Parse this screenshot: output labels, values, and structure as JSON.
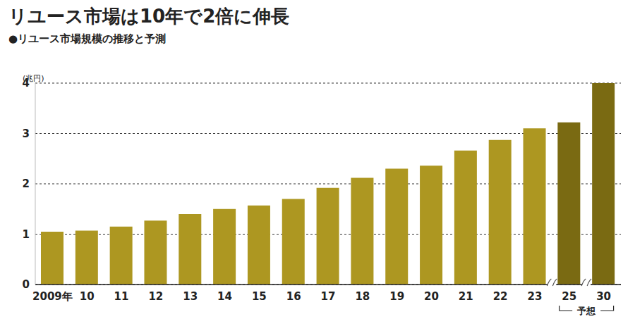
{
  "chart_data": {
    "type": "bar",
    "title": "リユース市場は10年で2倍に伸長",
    "subtitle": "●リユース市場規模の推移と予測",
    "ylabel": "(兆円)",
    "categories": [
      "2009年",
      "10",
      "11",
      "12",
      "13",
      "14",
      "15",
      "16",
      "17",
      "18",
      "19",
      "20",
      "21",
      "22",
      "23",
      "25",
      "30"
    ],
    "values": [
      1.05,
      1.07,
      1.15,
      1.27,
      1.4,
      1.5,
      1.57,
      1.7,
      1.92,
      2.12,
      2.3,
      2.36,
      2.66,
      2.87,
      3.1,
      3.22,
      4.0
    ],
    "colors": [
      "#ad9721",
      "#ad9721",
      "#ad9721",
      "#ad9721",
      "#ad9721",
      "#ad9721",
      "#ad9721",
      "#ad9721",
      "#ad9721",
      "#ad9721",
      "#ad9721",
      "#ad9721",
      "#ad9721",
      "#ad9721",
      "#ad9721",
      "#7a6a12",
      "#7a6a12"
    ],
    "annotation": {
      "text": "予想",
      "categories": [
        "25",
        "30"
      ]
    },
    "ylim": [
      0,
      4
    ],
    "yticks": [
      0,
      1,
      2,
      3,
      4
    ],
    "grid": true
  }
}
